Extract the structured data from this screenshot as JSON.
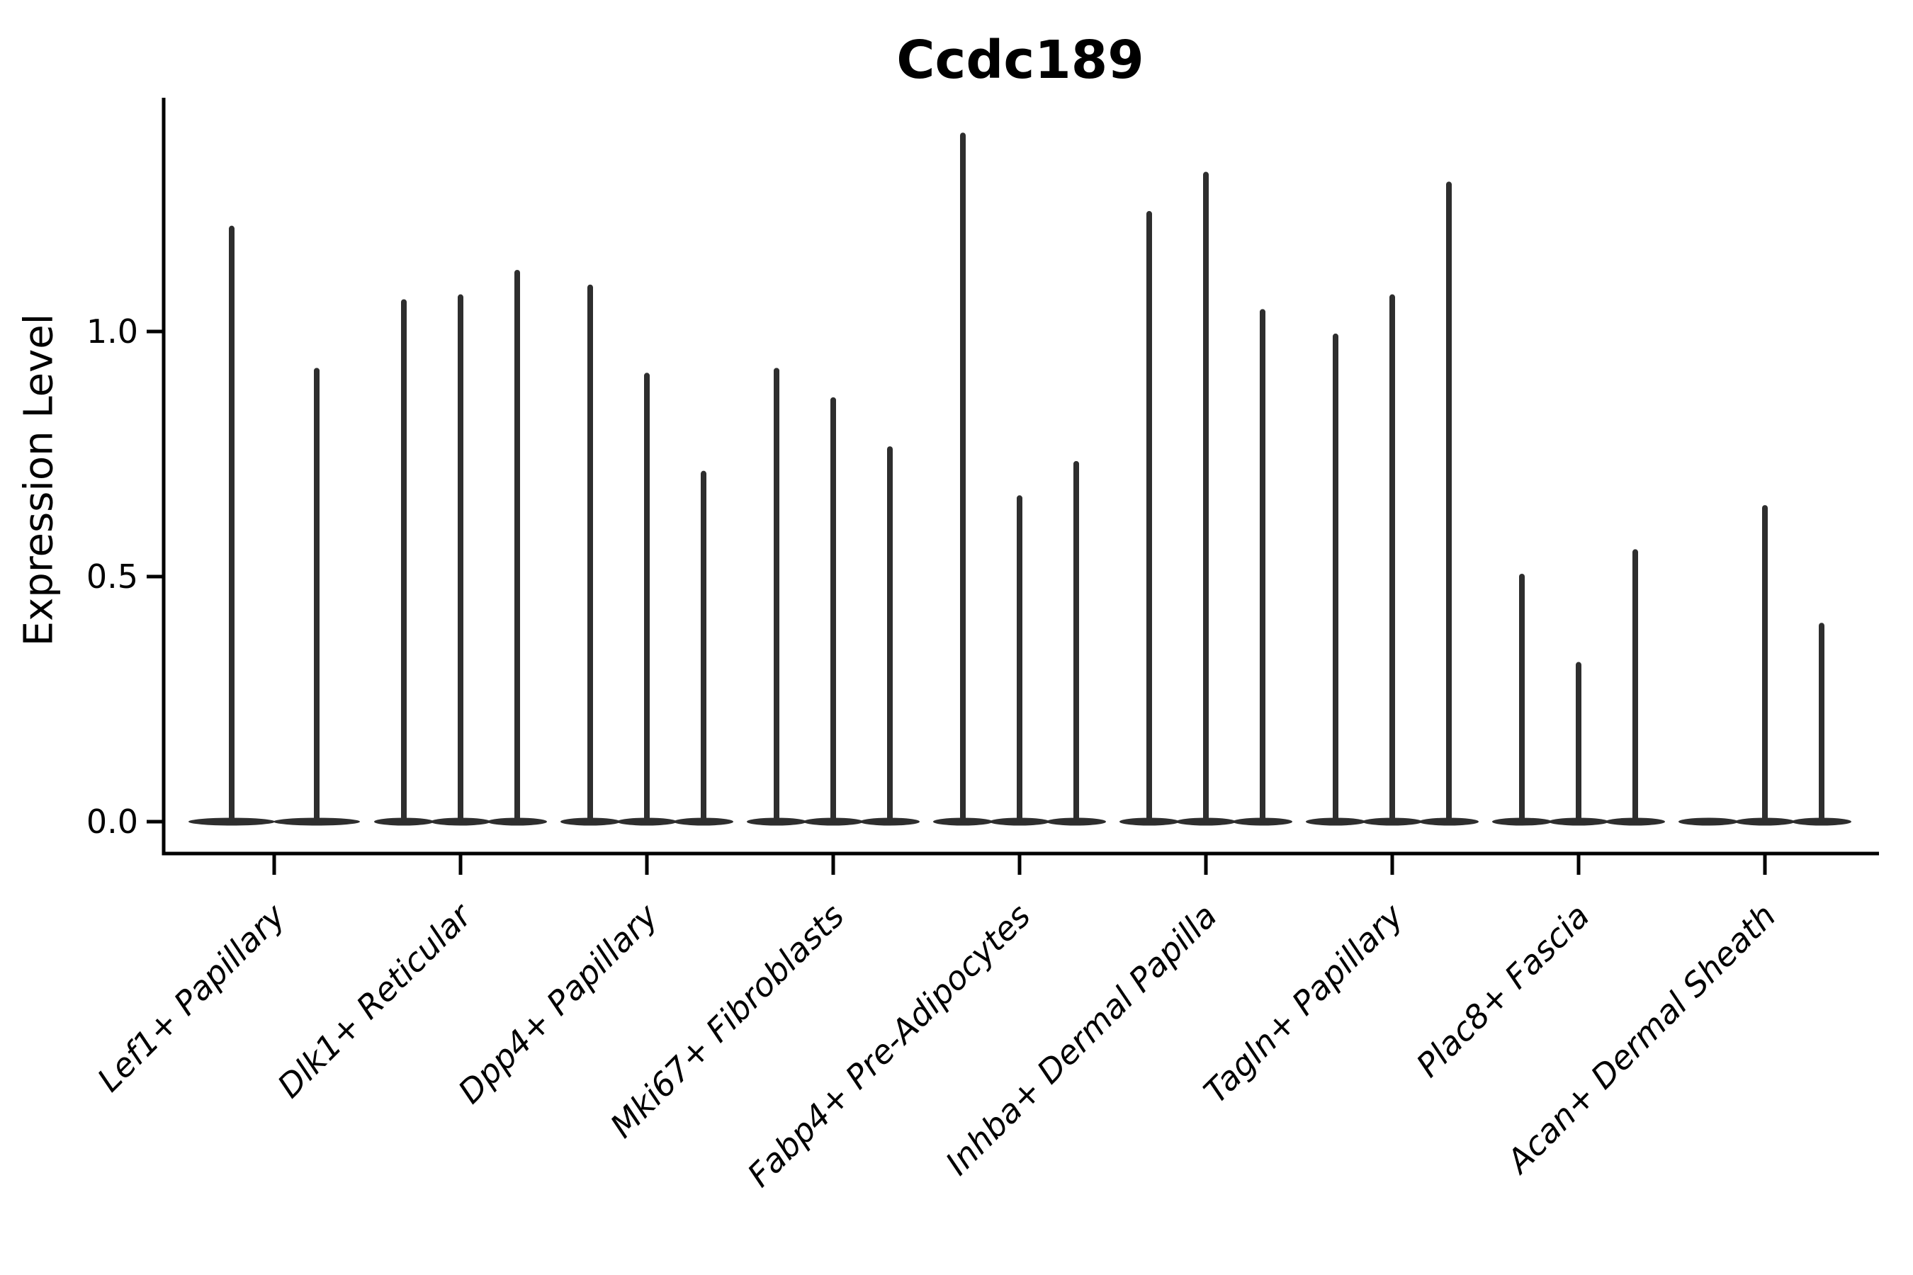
{
  "figure": {
    "title": "Ccdc189"
  },
  "chart_data": {
    "type": "violin",
    "title": "Ccdc189",
    "xlabel": "",
    "ylabel": "Expression Level",
    "ytick_labels": [
      "0.0",
      "0.5",
      "1.0"
    ],
    "ytick_values": [
      0.0,
      0.5,
      1.0
    ],
    "ylim": [
      -0.065,
      1.475
    ],
    "grid": false,
    "legend": "none",
    "violin_color": "#2e2e2e",
    "axis_color": "#000000",
    "description": "Thin spike-shaped violins: each violin is a flat base at expression 0 with a thin vertical tail rising to the maximum expression value listed below.",
    "categories": [
      "Lef1+ Papillary",
      "Dlk1+ Reticular",
      "Dpp4+ Papillary",
      "Mki67+ Fibroblasts",
      "Fabp4+ Pre-Adipocytes",
      "Inhba+ Dermal Papilla",
      "Tagln+ Papillary",
      "Plac8+ Fascia",
      "Acan+ Dermal Sheath"
    ],
    "series": [
      {
        "category": "Lef1+ Papillary",
        "violin_max_values": [
          1.21,
          0.92
        ]
      },
      {
        "category": "Dlk1+ Reticular",
        "violin_max_values": [
          1.06,
          1.07,
          1.12
        ]
      },
      {
        "category": "Dpp4+ Papillary",
        "violin_max_values": [
          1.09,
          0.91,
          0.71
        ]
      },
      {
        "category": "Mki67+ Fibroblasts",
        "violin_max_values": [
          0.92,
          0.86,
          0.76
        ]
      },
      {
        "category": "Fabp4+ Pre-Adipocytes",
        "violin_max_values": [
          1.4,
          0.66,
          0.73
        ]
      },
      {
        "category": "Inhba+ Dermal Papilla",
        "violin_max_values": [
          1.24,
          1.32,
          1.04
        ]
      },
      {
        "category": "Tagln+ Papillary",
        "violin_max_values": [
          0.99,
          1.07,
          1.3
        ]
      },
      {
        "category": "Plac8+ Fascia",
        "violin_max_values": [
          0.5,
          0.32,
          0.55
        ]
      },
      {
        "category": "Acan+ Dermal Sheath",
        "violin_max_values": [
          0.0,
          0.64,
          0.4
        ]
      }
    ]
  }
}
